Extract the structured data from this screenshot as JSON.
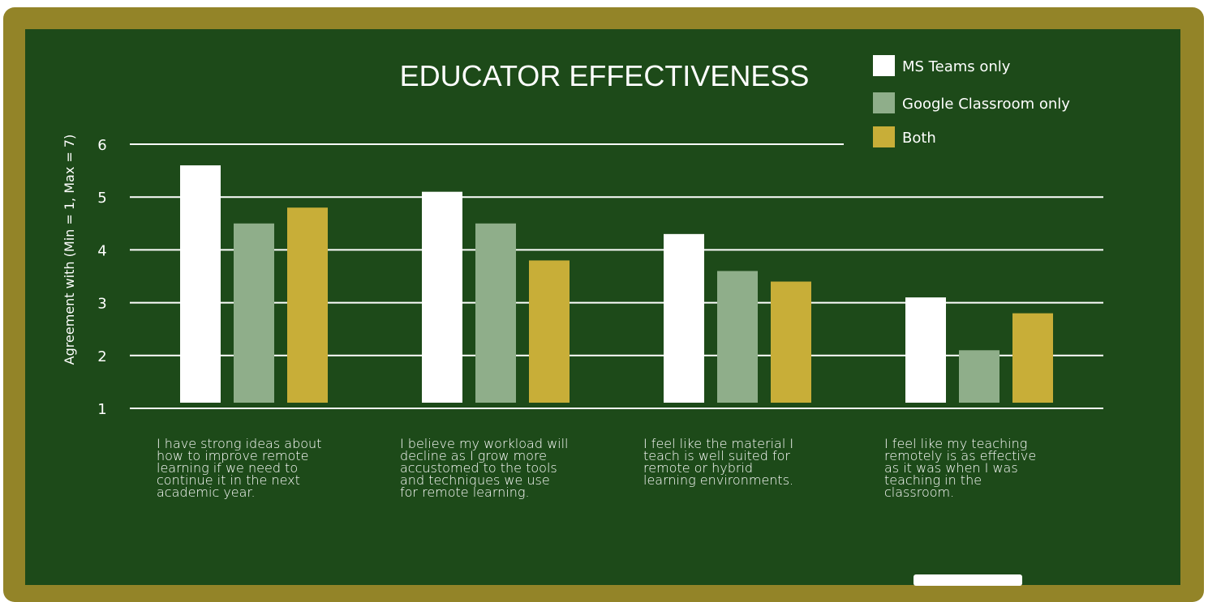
{
  "chart_data": {
    "type": "bar",
    "title": "EDUCATOR EFFECTIVENESS",
    "xlabel": "",
    "ylabel": "Agreement with (Min = 1, Max = 7)",
    "ylim": [
      1,
      6
    ],
    "yticks": [
      1,
      2,
      3,
      4,
      5,
      6
    ],
    "grid": true,
    "legend_position": "top-right",
    "categories": [
      "I have strong ideas about how to improve remote learning if we need to continue it in the next academic year.",
      "I believe my workload will decline as I grow more accustomed to the tools and techniques we use for remote learning.",
      "I feel like the material I teach is well suited for remote or hybrid learning environments.",
      "I feel like my teaching remotely is as effective as it was when I was teaching in the classroom."
    ],
    "category_lines": [
      [
        "I have strong ideas about",
        "how to improve remote",
        "learning if we need to",
        "continue it in the next",
        "academic year."
      ],
      [
        "I believe my workload will",
        "decline as I grow more",
        "accustomed to the tools",
        "and techniques we use",
        "for remote learning."
      ],
      [
        "I feel like the material I",
        "teach is well suited for",
        "remote or hybrid",
        "learning environments."
      ],
      [
        "I feel like my teaching",
        "remotely is as effective",
        "as it was when I was",
        "teaching in the",
        "classroom."
      ]
    ],
    "series": [
      {
        "name": "MS Teams only",
        "color": "#ffffff",
        "values": [
          5.6,
          5.1,
          4.3,
          3.1
        ]
      },
      {
        "name": "Google Classroom only",
        "color": "#8fae8a",
        "values": [
          4.5,
          4.5,
          3.6,
          2.1
        ]
      },
      {
        "name": "Both",
        "color": "#c8ae38",
        "values": [
          4.8,
          3.8,
          3.4,
          2.8
        ]
      }
    ]
  }
}
